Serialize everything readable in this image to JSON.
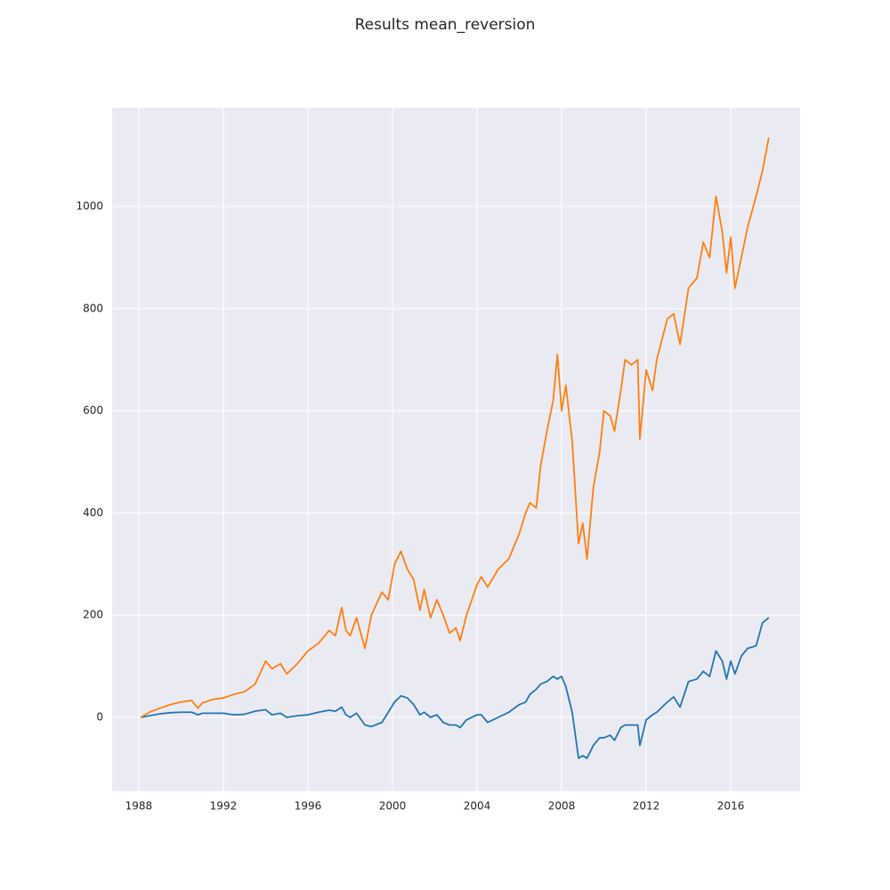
{
  "chart_data": {
    "type": "line",
    "title": "Results mean_reversion",
    "x": [
      1988.1,
      1988.5,
      1989,
      1989.5,
      1990,
      1990.5,
      1990.8,
      1991,
      1991.5,
      1992,
      1992.5,
      1993,
      1993.5,
      1994,
      1994.3,
      1994.7,
      1995,
      1995.5,
      1996,
      1996.5,
      1997,
      1997.3,
      1997.6,
      1997.8,
      1998,
      1998.3,
      1998.7,
      1999,
      1999.5,
      1999.8,
      2000.1,
      2000.4,
      2000.7,
      2001,
      2001.3,
      2001.5,
      2001.8,
      2002.1,
      2002.4,
      2002.7,
      2003,
      2003.2,
      2003.5,
      2004,
      2004.2,
      2004.5,
      2005,
      2005.5,
      2006,
      2006.3,
      2006.5,
      2006.8,
      2007,
      2007.3,
      2007.6,
      2007.8,
      2008,
      2008.2,
      2008.5,
      2008.8,
      2009,
      2009.2,
      2009.5,
      2009.8,
      2010,
      2010.3,
      2010.5,
      2010.8,
      2011,
      2011.3,
      2011.6,
      2011.7,
      2012,
      2012.3,
      2012.5,
      2013,
      2013.3,
      2013.6,
      2014,
      2014.4,
      2014.7,
      2015,
      2015.3,
      2015.6,
      2015.8,
      2016,
      2016.2,
      2016.5,
      2016.8,
      2017.2,
      2017.5,
      2017.8
    ],
    "series": [
      {
        "color": "#1f77b4",
        "values": [
          0,
          3,
          7,
          9,
          10,
          10,
          5,
          8,
          8,
          8,
          5,
          6,
          12,
          15,
          5,
          8,
          0,
          3,
          5,
          10,
          14,
          12,
          20,
          5,
          0,
          8,
          -15,
          -18,
          -10,
          10,
          30,
          42,
          38,
          25,
          5,
          10,
          0,
          5,
          -10,
          -15,
          -15,
          -20,
          -5,
          5,
          5,
          -10,
          0,
          10,
          25,
          30,
          45,
          55,
          65,
          70,
          80,
          75,
          80,
          60,
          10,
          -80,
          -75,
          -80,
          -55,
          -40,
          -40,
          -35,
          -45,
          -20,
          -15,
          -15,
          -15,
          -55,
          -5,
          5,
          10,
          30,
          40,
          20,
          70,
          75,
          90,
          80,
          130,
          110,
          75,
          110,
          85,
          120,
          135,
          140,
          185,
          195
        ]
      },
      {
        "color": "#ff7f0e",
        "values": [
          0,
          10,
          18,
          25,
          30,
          33,
          18,
          28,
          35,
          38,
          45,
          50,
          65,
          110,
          95,
          105,
          85,
          105,
          130,
          145,
          170,
          160,
          215,
          170,
          160,
          195,
          135,
          200,
          245,
          230,
          300,
          325,
          290,
          270,
          210,
          250,
          195,
          230,
          200,
          165,
          175,
          150,
          200,
          260,
          275,
          255,
          290,
          310,
          360,
          400,
          420,
          410,
          490,
          560,
          620,
          710,
          600,
          650,
          540,
          340,
          380,
          310,
          450,
          520,
          600,
          590,
          560,
          640,
          700,
          690,
          700,
          545,
          680,
          640,
          700,
          780,
          790,
          730,
          840,
          860,
          930,
          900,
          1020,
          950,
          870,
          940,
          840,
          900,
          960,
          1020,
          1070,
          1135
        ]
      }
    ],
    "xlim": [
      1986.74,
      2019.28
    ],
    "xticks": [
      1988,
      1992,
      1996,
      2000,
      2004,
      2008,
      2012,
      2016
    ],
    "ylim": [
      -144.6,
      1193.4
    ],
    "yticks": [
      0,
      200,
      400,
      600,
      800,
      1000
    ],
    "grid": true
  }
}
